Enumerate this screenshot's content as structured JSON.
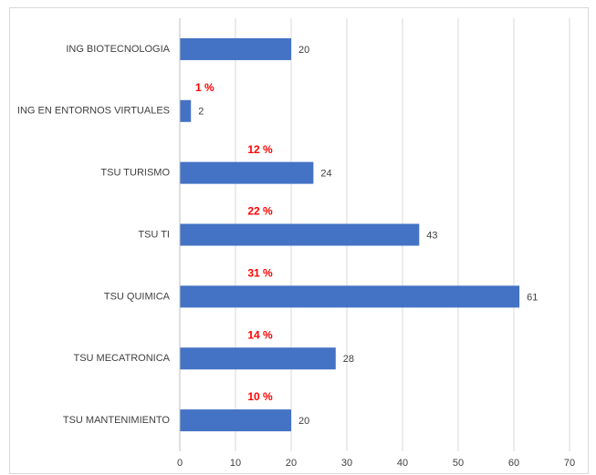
{
  "chart_data": {
    "type": "barh",
    "categories": [
      "ING BIOTECNOLOGIA",
      "ING EN ENTORNOS VIRTUALES",
      "TSU TURISMO",
      "TSU TI",
      "TSU QUIMICA",
      "TSU MECATRONICA",
      "TSU MANTENIMIENTO"
    ],
    "values": [
      20,
      2,
      24,
      43,
      61,
      28,
      20
    ],
    "percent_labels": [
      null,
      "1 %",
      "12 %",
      "22 %",
      "31 %",
      "14 %",
      "10 %"
    ],
    "color": "#4472c4",
    "annotation_color": "#ff0000",
    "xlim": [
      0,
      70
    ],
    "xticks": [
      0,
      10,
      20,
      30,
      40,
      50,
      60,
      70
    ],
    "grid": true
  }
}
